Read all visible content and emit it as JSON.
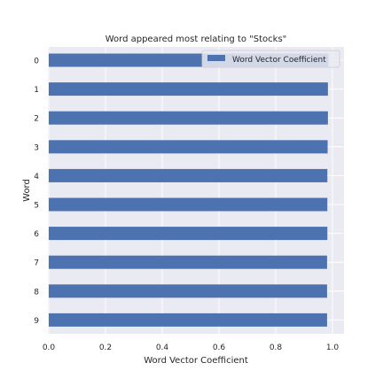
{
  "chart_data": {
    "type": "bar",
    "orientation": "horizontal",
    "title": "Word appeared most relating to \"Stocks\"",
    "xlabel": "Word Vector Coefficient",
    "ylabel": "Word",
    "categories": [
      "0",
      "1",
      "2",
      "3",
      "4",
      "5",
      "6",
      "7",
      "8",
      "9"
    ],
    "series": [
      {
        "name": "Word Vector Coefficient",
        "values": [
          0.986,
          0.984,
          0.984,
          0.983,
          0.982,
          0.982,
          0.982,
          0.981,
          0.981,
          0.981
        ]
      }
    ],
    "xlim": [
      0.0,
      1.0
    ],
    "xticks": [
      "0.0",
      "0.2",
      "0.4",
      "0.6",
      "0.8",
      "1.0"
    ],
    "grid": true,
    "legend_position": "top-right",
    "colors": {
      "bar": "#4c72b0",
      "plot_background": "#eaeaf2",
      "grid": "#ffffff"
    }
  }
}
